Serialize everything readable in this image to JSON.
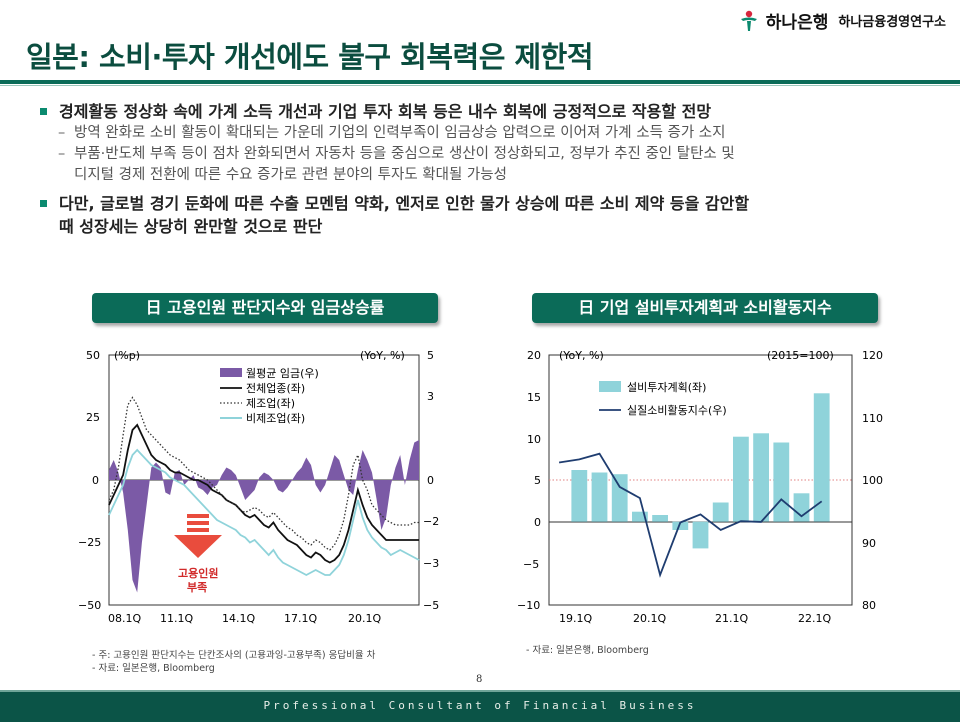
{
  "header": {
    "bank_name": "하나은행",
    "institute_name": "하나금융경영연구소",
    "title": "일본: 소비·투자 개선에도 불구 회복력은 제한적"
  },
  "bullets": [
    {
      "text": "경제활동 정상화 속에 가계 소득 개선과 기업 투자 회복 등은 내수 회복에 긍정적으로 작용할 전망",
      "subs": [
        "방역 완화로 소비 활동이 확대되는 가운데 기업의 인력부족이 임금상승 압력으로 이어져 가계 소득 증가 소지",
        "부품·반도체 부족 등이 점차 완화되면서 자동차 등을 중심으로 생산이 정상화되고, 정부가 추진 중인 탈탄소 및",
        "디지털 경제 전환에 따른 수요 증가로 관련 분야의 투자도 확대될 가능성"
      ]
    },
    {
      "text_line1": "다만, 글로벌 경기 둔화에 따른 수출 모멘텀 약화, 엔저로 인한 물가 상승에 따른 소비 제약 등을 감안할",
      "text_line2": "때 성장세는 상당히 완만할 것으로 판단"
    }
  ],
  "chart_left_badge": "日 고용인원 판단지수와 임금상승률",
  "chart_right_badge": "日 기업 설비투자계획과 소비활동지수",
  "chart_data": [
    {
      "type": "line",
      "title": "日 고용인원 판단지수와 임금상승률",
      "ylabel_left": "(%p)",
      "ylabel_right": "(YoY, %)",
      "ylim_left": [
        -50,
        50
      ],
      "ylim_right": [
        -5,
        5
      ],
      "yticks_left": [
        "50",
        "25",
        "0",
        "−25",
        "−50"
      ],
      "yticks_right": [
        "5",
        "3",
        "0",
        "−2",
        "−3",
        "−5"
      ],
      "xticks": [
        "08.1Q",
        "11.1Q",
        "14.1Q",
        "17.1Q",
        "20.1Q"
      ],
      "annotation": "고용인원 부족",
      "annotation_line1": "고용인원",
      "annotation_line2": "부족",
      "legend": [
        "월평균 임금(우)",
        "전체업종(좌)",
        "제조업(좌)",
        "비제조업(좌)"
      ],
      "series": [
        {
          "name": "월평균 임금(우)",
          "axis": "right",
          "kind": "area",
          "color": "#7b5aa6",
          "values": [
            0.4,
            0.8,
            0.3,
            -0.5,
            -2.0,
            -4.0,
            -4.5,
            -2.5,
            -1.0,
            0.5,
            0.7,
            0.5,
            -0.5,
            -0.6,
            0.3,
            0.4,
            -0.2,
            0.0,
            0.2,
            -0.3,
            -0.4,
            -0.6,
            -0.3,
            -0.2,
            0.2,
            0.5,
            0.4,
            0.2,
            -0.3,
            -0.8,
            -0.6,
            -0.4,
            0.1,
            0.3,
            0.2,
            0.0,
            -0.4,
            -0.5,
            -0.3,
            0.0,
            0.3,
            0.5,
            0.9,
            0.6,
            -0.2,
            -0.5,
            -0.2,
            0.4,
            1.0,
            0.8,
            0.2,
            -0.4,
            -0.6,
            0.4,
            1.2,
            0.8,
            0.3,
            -0.8,
            -2.0,
            -1.5,
            -0.2,
            0.5,
            1.0,
            -0.2,
            0.8,
            1.5,
            1.6
          ]
        },
        {
          "name": "전체업종(좌)",
          "axis": "left",
          "kind": "line",
          "color": "#111111",
          "values": [
            -10,
            -6,
            -2,
            2,
            12,
            20,
            22,
            18,
            14,
            10,
            8,
            7,
            6,
            4,
            3,
            3,
            2,
            1,
            0,
            0,
            -1,
            -2,
            -4,
            -5,
            -6,
            -8,
            -9,
            -10,
            -12,
            -14,
            -15,
            -14,
            -16,
            -18,
            -19,
            -17,
            -20,
            -22,
            -24,
            -25,
            -26,
            -28,
            -30,
            -31,
            -29,
            -30,
            -32,
            -33,
            -32,
            -30,
            -26,
            -20,
            -12,
            -4,
            -10,
            -15,
            -18,
            -20,
            -22,
            -24,
            -24,
            -24,
            -24,
            -24,
            -24,
            -24,
            -24
          ]
        },
        {
          "name": "제조업(좌)",
          "axis": "left",
          "kind": "dotted",
          "color": "#333333",
          "values": [
            -8,
            -4,
            5,
            18,
            30,
            33,
            30,
            25,
            20,
            18,
            16,
            14,
            12,
            10,
            9,
            8,
            6,
            4,
            3,
            2,
            1,
            0,
            -2,
            -4,
            -6,
            -8,
            -9,
            -10,
            -12,
            -13,
            -12,
            -11,
            -12,
            -14,
            -15,
            -13,
            -15,
            -17,
            -19,
            -20,
            -22,
            -23,
            -25,
            -26,
            -24,
            -25,
            -27,
            -28,
            -26,
            -22,
            -16,
            -6,
            6,
            10,
            0,
            -4,
            -10,
            -12,
            -14,
            -16,
            -17,
            -18,
            -18,
            -18,
            -18,
            -17,
            -17
          ]
        },
        {
          "name": "비제조업(좌)",
          "axis": "left",
          "kind": "line",
          "color": "#8fd3da",
          "values": [
            -14,
            -10,
            -6,
            -2,
            5,
            10,
            12,
            10,
            8,
            6,
            5,
            4,
            3,
            1,
            0,
            -1,
            -2,
            -4,
            -6,
            -8,
            -10,
            -12,
            -14,
            -16,
            -17,
            -18,
            -19,
            -20,
            -22,
            -23,
            -25,
            -24,
            -26,
            -28,
            -30,
            -28,
            -31,
            -33,
            -34,
            -35,
            -36,
            -37,
            -38,
            -37,
            -36,
            -37,
            -38,
            -38,
            -36,
            -34,
            -30,
            -24,
            -16,
            -8,
            -15,
            -20,
            -23,
            -25,
            -27,
            -28,
            -30,
            -29,
            -28,
            -29,
            -30,
            -31,
            -32
          ]
        }
      ]
    },
    {
      "type": "bar",
      "title": "日 기업 설비투자계획과 소비활동지수",
      "ylabel_left": "(YoY, %)",
      "base_note": "(2015=100)",
      "ylim_left": [
        -10,
        20
      ],
      "ylim_right": [
        80,
        120
      ],
      "yticks_left": [
        "20",
        "15",
        "10",
        "5",
        "0",
        "−5",
        "−10"
      ],
      "yticks_right": [
        "120",
        "110",
        "100",
        "90",
        "80"
      ],
      "xticks": [
        "19.1Q",
        "20.1Q",
        "21.1Q",
        "22.1Q"
      ],
      "legend": [
        "설비투자계획(좌)",
        "실질소비활동지수(우)"
      ],
      "categories": [
        "18.4Q",
        "19.1Q",
        "19.2Q",
        "19.3Q",
        "19.4Q",
        "20.1Q",
        "20.2Q",
        "20.3Q",
        "20.4Q",
        "21.1Q",
        "21.2Q",
        "21.3Q",
        "21.4Q",
        "22.1Q",
        "22.2Q"
      ],
      "series": [
        {
          "name": "설비투자계획(좌)",
          "axis": "left",
          "kind": "bar",
          "color": "#8fd3da",
          "values": [
            null,
            6.2,
            5.9,
            5.7,
            1.2,
            0.8,
            -1.0,
            -3.2,
            2.3,
            10.2,
            10.6,
            9.5,
            3.4,
            15.4,
            null
          ]
        },
        {
          "name": "실질소비활동지수(우)",
          "axis": "right",
          "kind": "line",
          "color": "#1f3d70",
          "values": [
            102.8,
            103.3,
            104.2,
            98.9,
            97.1,
            84.8,
            93.2,
            94.5,
            92.0,
            93.4,
            93.3,
            96.9,
            94.2,
            96.6,
            null
          ]
        }
      ]
    }
  ],
  "footnote_left_1": "- 주: 고용인원 판단지수는 단칸조사의 (고용과잉-고용부족) 응답비율 차",
  "footnote_left_2": "- 자료: 일본은행, Bloomberg",
  "footnote_right": "- 자료: 일본은행, Bloomberg",
  "page_number": "8",
  "footer_text": "Professional Consultant of Financial Business"
}
